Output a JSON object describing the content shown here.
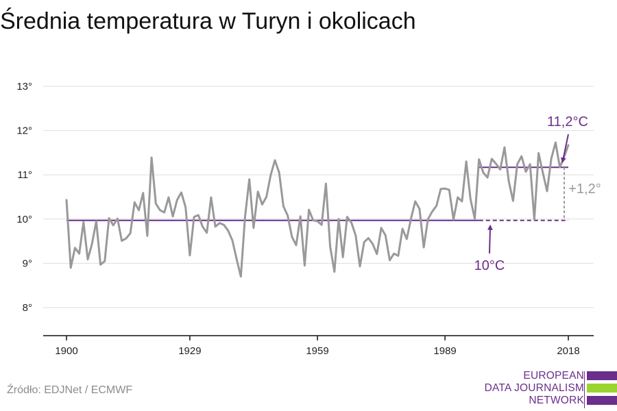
{
  "title": "Średnia temperatura w Turyn i okolicach",
  "source": "Źródło: EDJNet / ECMWF",
  "logo": {
    "lines": [
      "EUROPEAN",
      "DATA JOURNALISM",
      "NETWORK"
    ],
    "colors": {
      "purple": "#6b2e8c",
      "green": "#9bd32f",
      "white": "#ffffff"
    }
  },
  "colors": {
    "series": "#999999",
    "reference": "#6b2e8c",
    "annotation_purple": "#6b2e8c",
    "annotation_gray": "#999999",
    "grid": "#dddddd",
    "axis": "#111111"
  },
  "chart_data": {
    "type": "line",
    "title": "Średnia temperatura w Turyn i okolicach",
    "xlabel": "",
    "ylabel": "",
    "xlim": [
      1900,
      2018
    ],
    "ylim": [
      8,
      13
    ],
    "x_ticks": [
      1900,
      1929,
      1959,
      1989,
      2018
    ],
    "x_tick_labels": [
      "1900",
      "1929",
      "1959",
      "1989",
      "2018"
    ],
    "y_ticks": [
      8,
      9,
      10,
      11,
      12,
      13
    ],
    "y_tick_labels": [
      "8°",
      "9°",
      "10°",
      "11°",
      "12°",
      "13°"
    ],
    "grid": "horizontal",
    "series": [
      {
        "x": [
          1900,
          1901,
          1902,
          1903,
          1904,
          1905,
          1906,
          1907,
          1908,
          1909,
          1910,
          1911,
          1912,
          1913,
          1914,
          1915,
          1916,
          1917,
          1918,
          1919,
          1920,
          1921,
          1922,
          1923,
          1924,
          1925,
          1926,
          1927,
          1928,
          1929,
          1930,
          1931,
          1932,
          1933,
          1934,
          1935,
          1936,
          1937,
          1938,
          1939,
          1940,
          1941,
          1942,
          1943,
          1944,
          1945,
          1946,
          1947,
          1948,
          1949,
          1950,
          1951,
          1952,
          1953,
          1954,
          1955,
          1956,
          1957,
          1958,
          1959,
          1960,
          1961,
          1962,
          1963,
          1964,
          1965,
          1966,
          1967,
          1968,
          1969,
          1970,
          1971,
          1972,
          1973,
          1974,
          1975,
          1976,
          1977,
          1978,
          1979,
          1980,
          1981,
          1982,
          1983,
          1984,
          1985,
          1986,
          1987,
          1988,
          1989,
          1990,
          1991,
          1992,
          1993,
          1994,
          1995,
          1996,
          1997,
          1998,
          1999,
          2000,
          2001,
          2002,
          2003,
          2004,
          2005,
          2006,
          2007,
          2008,
          2009,
          2010,
          2011,
          2012,
          2013,
          2014,
          2015,
          2016,
          2017,
          2018
        ],
        "values": [
          10.43,
          8.9,
          9.35,
          9.22,
          9.93,
          9.09,
          9.44,
          9.95,
          8.97,
          9.05,
          10.02,
          9.86,
          10.01,
          9.51,
          9.56,
          9.68,
          10.38,
          10.2,
          10.59,
          9.62,
          11.39,
          10.35,
          10.2,
          10.15,
          10.49,
          10.06,
          10.43,
          10.6,
          10.27,
          9.18,
          10.05,
          10.09,
          9.83,
          9.69,
          10.49,
          9.83,
          9.91,
          9.87,
          9.74,
          9.52,
          9.1,
          8.7,
          10.06,
          10.9,
          9.8,
          10.62,
          10.33,
          10.5,
          10.99,
          11.33,
          11.05,
          10.29,
          10.08,
          9.6,
          9.41,
          10.06,
          8.95,
          10.21,
          9.97,
          9.95,
          9.87,
          10.8,
          9.38,
          8.81,
          10.0,
          9.14,
          10.05,
          9.92,
          9.63,
          8.93,
          9.48,
          9.57,
          9.44,
          9.21,
          9.8,
          9.63,
          9.07,
          9.22,
          9.17,
          9.78,
          9.55,
          10.01,
          10.4,
          10.23,
          9.36,
          10.0,
          10.17,
          10.3,
          10.68,
          10.69,
          10.66,
          9.99,
          10.49,
          10.4,
          11.3,
          10.45,
          10.01,
          11.35,
          11.05,
          10.94,
          11.36,
          11.25,
          11.12,
          11.62,
          10.85,
          10.41,
          11.24,
          11.42,
          11.07,
          11.24,
          9.99,
          11.49,
          11.05,
          10.63,
          11.37,
          11.73,
          11.17,
          11.4,
          11.67
        ]
      }
    ],
    "reference_lines": [
      {
        "y": 9.97,
        "x_solid": [
          1900,
          1997
        ],
        "x_dashed": [
          1997,
          2018
        ],
        "label": "10°C"
      },
      {
        "y": 11.17,
        "x_solid": [
          1997,
          2018
        ],
        "label": "11,2°C"
      }
    ],
    "annotations": [
      {
        "text": "11,2°C",
        "points_to": [
          2018,
          11.17
        ]
      },
      {
        "text": "10°C",
        "points_to": [
          1996,
          9.97
        ]
      },
      {
        "text": "+1,2°",
        "span": [
          9.97,
          11.17
        ],
        "at_x": 2018
      }
    ]
  }
}
